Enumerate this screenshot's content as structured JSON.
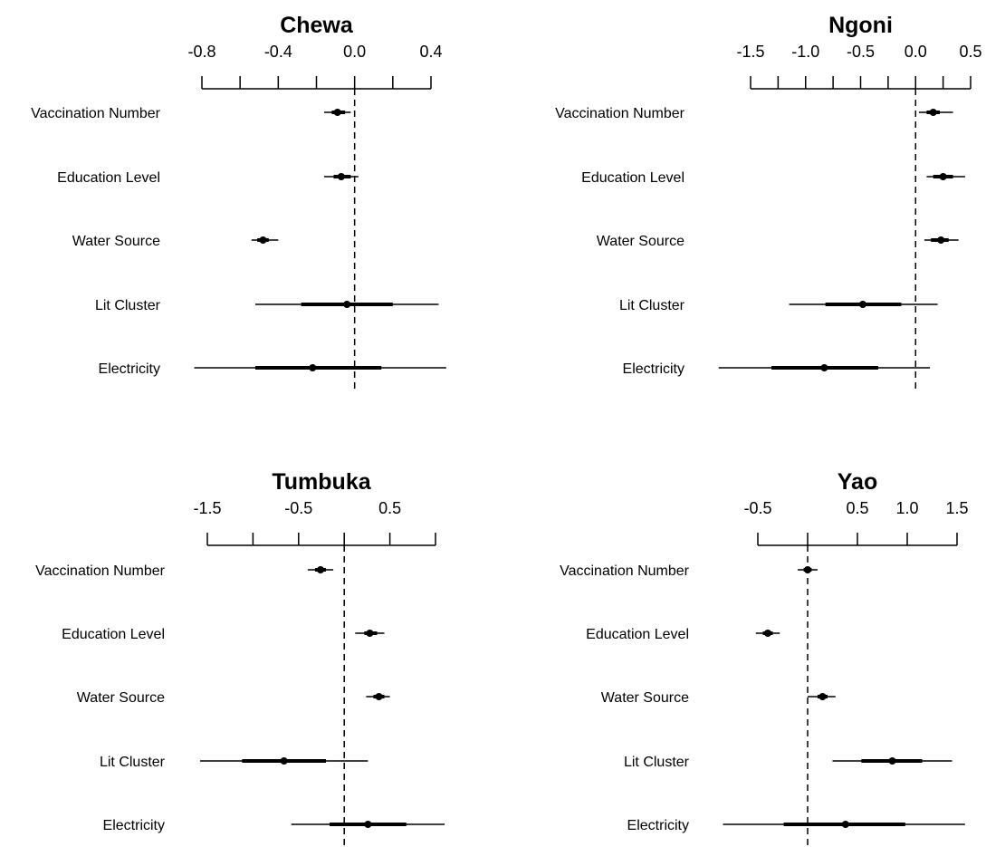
{
  "chart_data": [
    {
      "type": "coefficient-plot",
      "title": "Chewa",
      "variables": [
        "Vaccination Number",
        "Education Level",
        "Water Source",
        "Lit Cluster",
        "Electricity"
      ],
      "xticks": [
        -0.8,
        -0.4,
        0.0,
        0.4
      ],
      "xtick_labels": [
        "-0.8",
        "-0.4",
        "0.0",
        "0.4"
      ],
      "xlim": [
        -0.8,
        0.4
      ],
      "reference_line": 0.0,
      "estimates": [
        -0.09,
        -0.07,
        -0.48,
        -0.04,
        -0.22
      ],
      "inner_intervals": [
        [
          -0.12,
          -0.05
        ],
        [
          -0.11,
          -0.02
        ],
        [
          -0.51,
          -0.45
        ],
        [
          -0.28,
          0.2
        ],
        [
          -0.52,
          0.14
        ]
      ],
      "outer_intervals": [
        [
          -0.16,
          -0.02
        ],
        [
          -0.16,
          0.02
        ],
        [
          -0.54,
          -0.4
        ],
        [
          -0.52,
          0.44
        ],
        [
          -0.84,
          0.48
        ]
      ]
    },
    {
      "type": "coefficient-plot",
      "title": "Ngoni",
      "variables": [
        "Vaccination Number",
        "Education Level",
        "Water Source",
        "Lit Cluster",
        "Electricity"
      ],
      "xticks": [
        -1.5,
        -1.0,
        -0.5,
        0.0,
        0.5
      ],
      "xtick_labels": [
        "-1.5",
        "-1.0",
        "-0.5",
        "0.0",
        "0.5"
      ],
      "xlim": [
        -1.5,
        0.5
      ],
      "reference_line": 0.0,
      "estimates": [
        0.16,
        0.25,
        0.23,
        -0.48,
        -0.83
      ],
      "inner_intervals": [
        [
          0.1,
          0.22
        ],
        [
          0.16,
          0.34
        ],
        [
          0.14,
          0.3
        ],
        [
          -0.82,
          -0.13
        ],
        [
          -1.31,
          -0.34
        ]
      ],
      "outer_intervals": [
        [
          0.03,
          0.34
        ],
        [
          0.1,
          0.45
        ],
        [
          0.08,
          0.39
        ],
        [
          -1.15,
          0.2
        ],
        [
          -1.79,
          0.13
        ]
      ]
    },
    {
      "type": "coefficient-plot",
      "title": "Tumbuka",
      "variables": [
        "Vaccination Number",
        "Education Level",
        "Water Source",
        "Lit Cluster",
        "Electricity"
      ],
      "xticks": [
        -1.5,
        -0.5,
        0.5
      ],
      "xtick_labels": [
        "-1.5",
        "-0.5",
        "0.5"
      ],
      "minor_xticks": [
        -1.5,
        -1.0,
        -0.5,
        0.0,
        0.5,
        1.0
      ],
      "xlim": [
        -1.5,
        1.0
      ],
      "reference_line": 0.0,
      "estimates": [
        -0.26,
        0.28,
        0.38,
        -0.66,
        0.26
      ],
      "inner_intervals": [
        [
          -0.32,
          -0.2
        ],
        [
          0.22,
          0.36
        ],
        [
          0.32,
          0.44
        ],
        [
          -1.12,
          -0.2
        ],
        [
          -0.16,
          0.68
        ]
      ],
      "outer_intervals": [
        [
          -0.4,
          -0.12
        ],
        [
          0.12,
          0.44
        ],
        [
          0.24,
          0.5
        ],
        [
          -1.58,
          0.26
        ],
        [
          -0.58,
          1.1
        ]
      ]
    },
    {
      "type": "coefficient-plot",
      "title": "Yao",
      "variables": [
        "Vaccination Number",
        "Education Level",
        "Water Source",
        "Lit Cluster",
        "Electricity"
      ],
      "xticks": [
        -0.5,
        0.5,
        1.0,
        1.5
      ],
      "xtick_labels": [
        "-0.5",
        "0.5",
        "1.0",
        "1.5"
      ],
      "minor_xticks": [
        -0.5,
        0.0,
        0.5,
        1.0,
        1.5
      ],
      "xlim": [
        -0.5,
        1.5
      ],
      "reference_line": 0.0,
      "estimates": [
        0.0,
        -0.4,
        0.15,
        0.85,
        0.38
      ],
      "inner_intervals": [
        [
          -0.04,
          0.04
        ],
        [
          -0.45,
          -0.35
        ],
        [
          0.1,
          0.2
        ],
        [
          0.54,
          1.15
        ],
        [
          -0.24,
          0.98
        ]
      ],
      "outer_intervals": [
        [
          -0.1,
          0.1
        ],
        [
          -0.52,
          -0.28
        ],
        [
          0.0,
          0.28
        ],
        [
          0.25,
          1.45
        ],
        [
          -0.85,
          1.58
        ]
      ]
    }
  ]
}
